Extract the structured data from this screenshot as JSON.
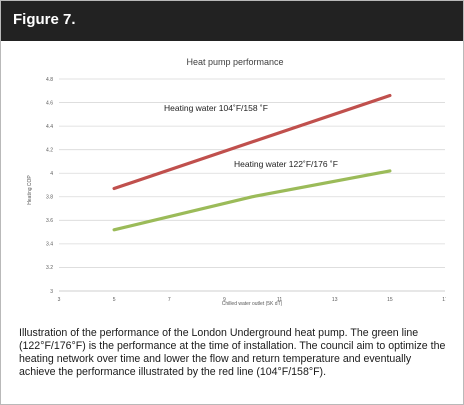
{
  "figure": {
    "label": "Figure 7.",
    "caption": "Illustration of the performance of the London Underground heat pump. The green line (122°F/176°F) is the performance at the time of installation. The council aim to optimize the heating network over time and lower the flow and return temperature and eventually achieve the performance illustrated by the red line (104°F/158°F)."
  },
  "chart_data": {
    "type": "line",
    "title": "Heat pump performance",
    "xlabel": "Chilled water outlet (5K dT)",
    "ylabel": "Heating COP",
    "xlim": [
      3,
      17
    ],
    "ylim": [
      3,
      4.8
    ],
    "x_ticks": [
      "3",
      "5",
      "7",
      "9",
      "11",
      "13",
      "15",
      "17"
    ],
    "y_ticks": [
      "3",
      "3.2",
      "3.4",
      "3.6",
      "3.8",
      "4",
      "4.2",
      "4.4",
      "4.6",
      "4.8"
    ],
    "grid": true,
    "series": [
      {
        "name": "Heating water 104˚F/158 ˚F",
        "color": "#c0504d",
        "x": [
          5,
          15
        ],
        "y": [
          3.87,
          4.66
        ]
      },
      {
        "name": "Heating water 122˚F/176 ˚F",
        "color": "#9bbb59",
        "x": [
          5,
          10,
          15
        ],
        "y": [
          3.52,
          3.8,
          4.02
        ]
      }
    ]
  }
}
